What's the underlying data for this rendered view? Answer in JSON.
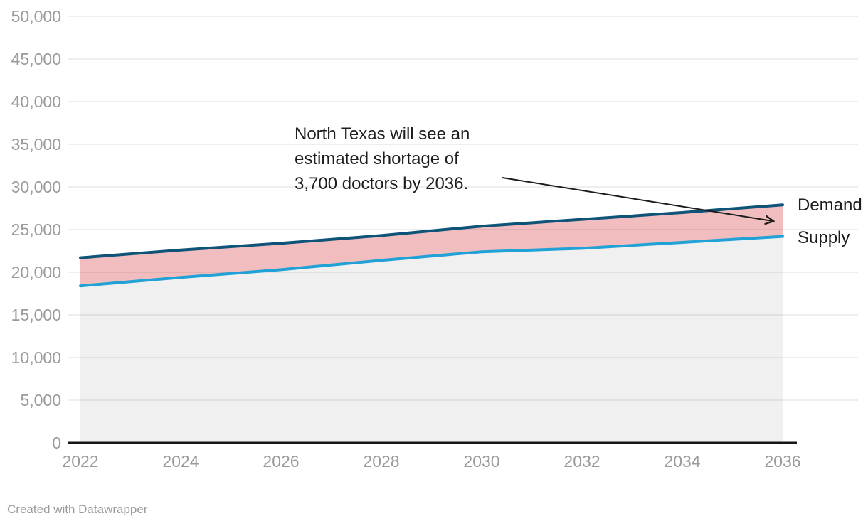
{
  "annotation": {
    "lines": [
      "North Texas will see an",
      "estimated shortage of",
      "3,700 doctors by 2036."
    ]
  },
  "series_labels": {
    "demand": "Demand",
    "supply": "Supply"
  },
  "footer": {
    "credit": "Created with Datawrapper"
  },
  "colors": {
    "demand_line": "#0d5478",
    "supply_line": "#20a2d6",
    "shortage_fill": "#f1bdbf",
    "supply_fill": "#f0f0f0",
    "gridline": "rgba(0,0,0,0.09)",
    "baseline": "#161616",
    "axis_text": "#9a9a9a",
    "annotation_text": "#1d1d1d"
  },
  "chart_data": {
    "type": "area",
    "title": "",
    "xlabel": "",
    "ylabel": "",
    "categories": [
      2022,
      2024,
      2026,
      2028,
      2030,
      2032,
      2034,
      2036
    ],
    "series": [
      {
        "name": "Demand",
        "color": "#0d5478",
        "values": [
          21700,
          22600,
          23400,
          24300,
          25400,
          26200,
          27000,
          27900
        ]
      },
      {
        "name": "Supply",
        "color": "#20a2d6",
        "values": [
          18400,
          19400,
          20300,
          21400,
          22400,
          22800,
          23500,
          24200
        ]
      }
    ],
    "ylim": [
      0,
      50000
    ],
    "ytick_step": 5000,
    "ytick_labels": [
      "0",
      "5,000",
      "10,000",
      "15,000",
      "20,000",
      "25,000",
      "30,000",
      "35,000",
      "40,000",
      "45,000",
      "50,000"
    ],
    "grid": true,
    "legend_position": "right-edge-direct-labels",
    "annotation": "North Texas will see an estimated shortage of 3,700 doctors by 2036.",
    "shortage_at_2036": 3700
  }
}
